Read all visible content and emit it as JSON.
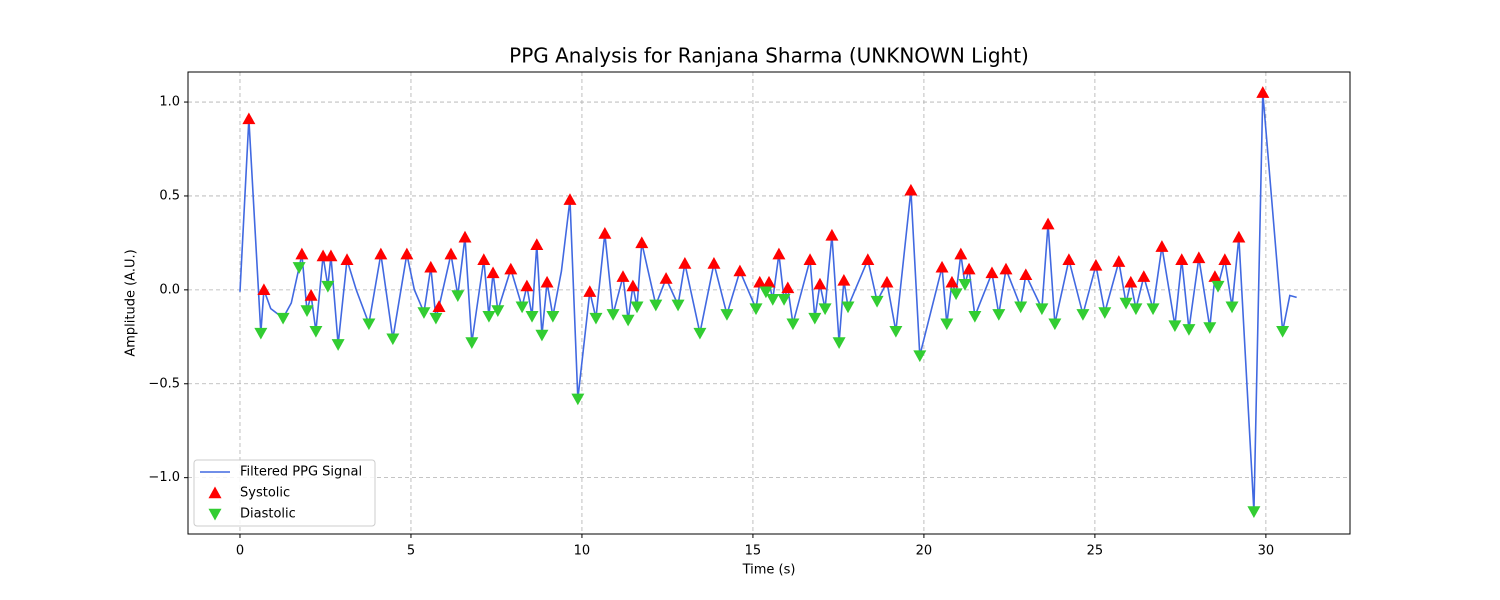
{
  "chart_data": {
    "type": "line",
    "title": "PPG Analysis for Ranjana Sharma (UNKNOWN Light)",
    "x_label": "Time (s)",
    "y_label": "Amplitude (A.U.)",
    "xlim": [
      -1.52,
      32.46
    ],
    "ylim": [
      -1.3,
      1.16
    ],
    "xticks": [
      0,
      5,
      10,
      15,
      20,
      25,
      30
    ],
    "yticks": [
      {
        "value": -1.0,
        "label": "−1.0"
      },
      {
        "value": -0.5,
        "label": "−0.5"
      },
      {
        "value": 0.0,
        "label": "0.0"
      },
      {
        "value": 0.5,
        "label": "0.5"
      },
      {
        "value": 1.0,
        "label": "1.0"
      }
    ],
    "grid": true,
    "legend": "lower left",
    "series": [
      {
        "name": "Filtered PPG Signal",
        "color": "#4169e1",
        "kind": "line",
        "x": [
          0,
          0.26,
          0.61,
          0.7,
          0.9,
          1.26,
          1.5,
          1.73,
          1.81,
          1.96,
          2.08,
          2.22,
          2.43,
          2.57,
          2.66,
          2.87,
          3.13,
          3.4,
          3.77,
          4.12,
          4.47,
          4.88,
          5.1,
          5.38,
          5.58,
          5.73,
          5.82,
          6.17,
          6.37,
          6.58,
          6.78,
          7.13,
          7.28,
          7.4,
          7.54,
          7.92,
          8.25,
          8.39,
          8.54,
          8.68,
          8.83,
          8.98,
          9.15,
          9.4,
          9.65,
          9.88,
          10.23,
          10.41,
          10.67,
          10.91,
          11.2,
          11.35,
          11.49,
          11.61,
          11.75,
          12.16,
          12.46,
          12.81,
          13.01,
          13.45,
          13.86,
          14.24,
          14.62,
          15.09,
          15.2,
          15.38,
          15.47,
          15.58,
          15.76,
          15.91,
          16.02,
          16.17,
          16.67,
          16.81,
          16.96,
          17.11,
          17.31,
          17.52,
          17.66,
          17.78,
          18.36,
          18.63,
          18.92,
          19.18,
          19.62,
          19.88,
          20.53,
          20.67,
          20.82,
          20.94,
          21.08,
          21.2,
          21.32,
          21.49,
          21.99,
          22.19,
          22.4,
          22.83,
          22.98,
          23.45,
          23.63,
          23.83,
          24.24,
          24.65,
          25.03,
          25.29,
          25.7,
          25.91,
          26.05,
          26.2,
          26.43,
          26.7,
          26.96,
          27.34,
          27.54,
          27.75,
          28.04,
          28.36,
          28.51,
          28.6,
          28.8,
          29.01,
          29.21,
          29.65,
          29.91,
          30.49,
          30.7,
          30.9
        ],
        "values": [
          -0.01,
          0.91,
          -0.23,
          0.0,
          -0.1,
          -0.15,
          -0.07,
          0.12,
          0.19,
          -0.11,
          -0.03,
          -0.22,
          0.18,
          0.02,
          0.18,
          -0.29,
          0.16,
          0.0,
          -0.18,
          0.19,
          -0.26,
          0.19,
          0.0,
          -0.12,
          0.12,
          -0.15,
          -0.09,
          0.19,
          -0.03,
          0.28,
          -0.28,
          0.16,
          -0.14,
          0.09,
          -0.11,
          0.11,
          -0.09,
          0.02,
          -0.14,
          0.24,
          -0.24,
          0.04,
          -0.14,
          0.1,
          0.48,
          -0.58,
          -0.01,
          -0.15,
          0.3,
          -0.13,
          0.07,
          -0.16,
          0.02,
          -0.09,
          0.25,
          -0.08,
          0.06,
          -0.08,
          0.14,
          -0.23,
          0.14,
          -0.13,
          0.1,
          -0.1,
          0.04,
          -0.01,
          0.04,
          -0.05,
          0.19,
          -0.05,
          0.01,
          -0.18,
          0.16,
          -0.15,
          0.03,
          -0.1,
          0.29,
          -0.28,
          0.05,
          -0.09,
          0.16,
          -0.06,
          0.04,
          -0.22,
          0.53,
          -0.35,
          0.12,
          -0.18,
          0.04,
          -0.02,
          0.19,
          0.03,
          0.11,
          -0.14,
          0.09,
          -0.13,
          0.11,
          -0.09,
          0.08,
          -0.1,
          0.35,
          -0.18,
          0.16,
          -0.13,
          0.13,
          -0.12,
          0.15,
          -0.07,
          0.04,
          -0.1,
          0.07,
          -0.1,
          0.23,
          -0.19,
          0.16,
          -0.21,
          0.17,
          -0.2,
          0.07,
          0.02,
          0.16,
          -0.09,
          0.28,
          -1.18,
          1.05,
          -0.22,
          -0.03,
          -0.04
        ]
      },
      {
        "name": "Systolic",
        "color": "#ff0000",
        "kind": "up",
        "x": [
          0.26,
          0.7,
          1.81,
          2.08,
          2.43,
          2.66,
          3.13,
          4.12,
          4.88,
          5.58,
          5.82,
          6.17,
          6.58,
          7.13,
          7.4,
          7.92,
          8.39,
          8.68,
          8.98,
          9.65,
          10.23,
          10.67,
          11.2,
          11.49,
          11.75,
          12.46,
          13.01,
          13.86,
          14.62,
          15.2,
          15.47,
          15.76,
          16.02,
          16.67,
          16.96,
          17.31,
          17.66,
          18.36,
          18.92,
          19.62,
          20.53,
          20.82,
          21.08,
          21.32,
          21.99,
          22.4,
          22.98,
          23.63,
          24.24,
          25.03,
          25.7,
          26.05,
          26.43,
          26.96,
          27.54,
          28.04,
          28.51,
          28.8,
          29.21,
          29.91
        ],
        "values": [
          0.91,
          0.0,
          0.19,
          -0.03,
          0.18,
          0.18,
          0.16,
          0.19,
          0.19,
          0.12,
          -0.09,
          0.19,
          0.28,
          0.16,
          0.09,
          0.11,
          0.02,
          0.24,
          0.04,
          0.48,
          -0.01,
          0.3,
          0.07,
          0.02,
          0.25,
          0.06,
          0.14,
          0.14,
          0.1,
          0.04,
          0.04,
          0.19,
          0.01,
          0.16,
          0.03,
          0.29,
          0.05,
          0.16,
          0.04,
          0.53,
          0.12,
          0.04,
          0.19,
          0.11,
          0.09,
          0.11,
          0.08,
          0.35,
          0.16,
          0.13,
          0.15,
          0.04,
          0.07,
          0.23,
          0.16,
          0.17,
          0.07,
          0.16,
          0.28,
          1.05
        ]
      },
      {
        "name": "Diastolic",
        "color": "#32cd32",
        "kind": "down",
        "x": [
          0.61,
          1.26,
          1.73,
          1.96,
          2.22,
          2.57,
          2.87,
          3.77,
          4.47,
          5.38,
          5.73,
          6.37,
          6.78,
          7.28,
          7.54,
          8.25,
          8.54,
          8.83,
          9.15,
          9.88,
          10.41,
          10.91,
          11.35,
          11.61,
          12.16,
          12.81,
          13.45,
          14.24,
          15.09,
          15.38,
          15.58,
          15.91,
          16.17,
          16.81,
          17.11,
          17.52,
          17.78,
          18.63,
          19.18,
          19.88,
          20.67,
          20.94,
          21.2,
          21.49,
          22.19,
          22.83,
          23.45,
          23.83,
          24.65,
          25.29,
          25.91,
          26.2,
          26.7,
          27.34,
          27.75,
          28.36,
          28.6,
          29.01,
          29.65,
          30.49
        ],
        "values": [
          -0.23,
          -0.15,
          0.12,
          -0.11,
          -0.22,
          0.02,
          -0.29,
          -0.18,
          -0.26,
          -0.12,
          -0.15,
          -0.03,
          -0.28,
          -0.14,
          -0.11,
          -0.09,
          -0.14,
          -0.24,
          -0.14,
          -0.58,
          -0.15,
          -0.13,
          -0.16,
          -0.09,
          -0.08,
          -0.08,
          -0.23,
          -0.13,
          -0.1,
          -0.01,
          -0.05,
          -0.05,
          -0.18,
          -0.15,
          -0.1,
          -0.28,
          -0.09,
          -0.06,
          -0.22,
          -0.35,
          -0.18,
          -0.02,
          0.03,
          -0.14,
          -0.13,
          -0.09,
          -0.1,
          -0.18,
          -0.13,
          -0.12,
          -0.07,
          -0.1,
          -0.1,
          -0.19,
          -0.21,
          -0.2,
          0.02,
          -0.09,
          -1.18,
          -0.22
        ]
      }
    ]
  }
}
